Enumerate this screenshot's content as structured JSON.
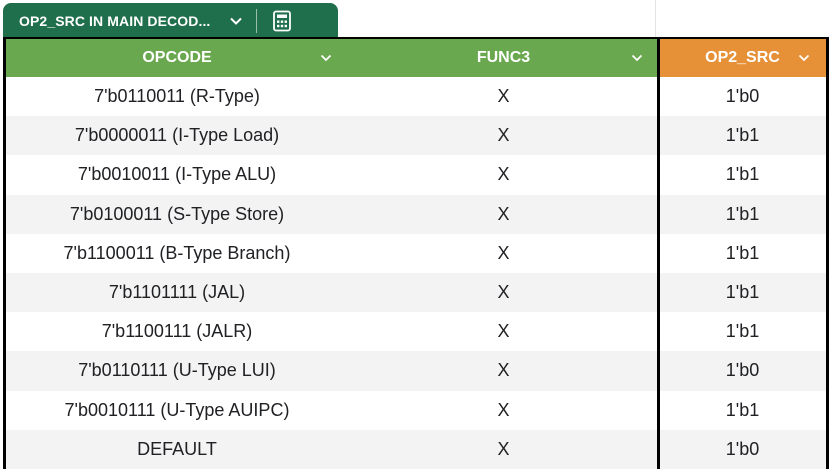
{
  "tab": {
    "title": "OP2_SRC IN MAIN DECOD...",
    "caret_icon": "chevron-down-icon",
    "calc_icon": "calculator-icon",
    "color": "#1f6f4c"
  },
  "table": {
    "headers": [
      "OPCODE",
      "FUNC3",
      "OP2_SRC"
    ],
    "header_colors": [
      "#6aa84f",
      "#6aa84f",
      "#e69138"
    ],
    "rows": [
      [
        "7'b0110011 (R-Type)",
        "X",
        "1'b0"
      ],
      [
        "7'b0000011 (I-Type Load)",
        "X",
        "1'b1"
      ],
      [
        "7'b0010011 (I-Type ALU)",
        "X",
        "1'b1"
      ],
      [
        "7'b0100011 (S-Type Store)",
        "X",
        "1'b1"
      ],
      [
        "7'b1100011 (B-Type Branch)",
        "X",
        "1'b1"
      ],
      [
        "7'b1101111 (JAL)",
        "X",
        "1'b1"
      ],
      [
        "7'b1100111 (JALR)",
        "X",
        "1'b1"
      ],
      [
        "7'b0110111 (U-Type LUI)",
        "X",
        "1'b0"
      ],
      [
        "7'b0010111 (U-Type AUIPC)",
        "X",
        "1'b1"
      ],
      [
        "DEFAULT",
        "X",
        "1'b0"
      ]
    ]
  }
}
